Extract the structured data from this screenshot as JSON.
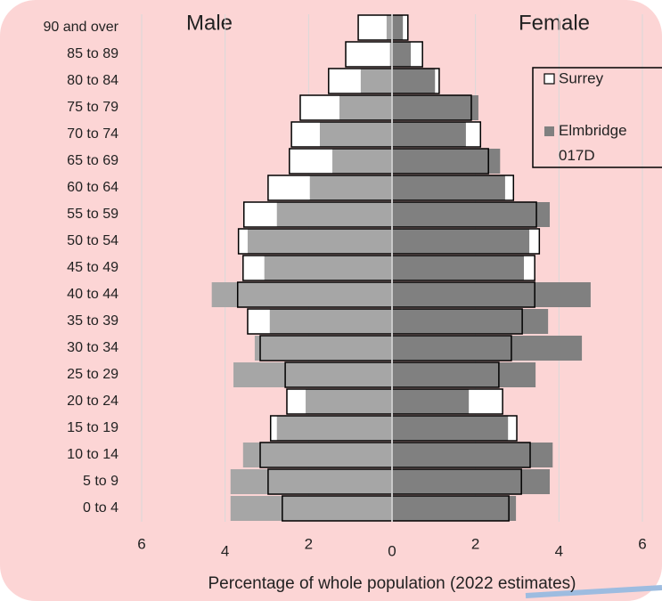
{
  "chart_data": {
    "type": "pyramid",
    "left_label": "Male",
    "right_label": "Female",
    "xlabel": "Percentage of whole population (2022 estimates)",
    "categories": [
      "0 to 4",
      "5 to 9",
      "10 to 14",
      "15 to 19",
      "20 to 24",
      "25 to 29",
      "30 to 34",
      "35 to 39",
      "40 to 44",
      "45 to 49",
      "50 to 54",
      "55 to 59",
      "60 to 64",
      "65 to 69",
      "70 to 74",
      "75 to 79",
      "80 to 84",
      "85 to 89",
      "90 and over"
    ],
    "xlim": [
      -6,
      6
    ],
    "xticks": [
      {
        "value": -6,
        "label": "6"
      },
      {
        "value": -4,
        "label": "4"
      },
      {
        "value": -2,
        "label": "2"
      },
      0,
      2,
      4,
      6
    ],
    "grid": true,
    "legend": "right",
    "series": [
      {
        "name": "Surrey",
        "color": "#ffffff",
        "edgecolor": "#000000",
        "male_values": [
          2.63,
          2.97,
          3.16,
          2.91,
          2.52,
          2.56,
          3.16,
          3.46,
          3.7,
          3.57,
          3.68,
          3.55,
          2.97,
          2.46,
          2.41,
          2.2,
          1.52,
          1.11,
          0.81
        ],
        "female_values": [
          2.8,
          3.1,
          3.31,
          2.99,
          2.65,
          2.56,
          2.86,
          3.12,
          3.42,
          3.42,
          3.53,
          3.46,
          2.91,
          2.31,
          2.12,
          1.9,
          1.13,
          0.73,
          0.38
        ]
      },
      {
        "name": "Elmbridge 017D",
        "color": "#a6a6a6",
        "female_color": "#808080",
        "male_values": [
          3.87,
          3.87,
          3.57,
          2.76,
          2.07,
          3.8,
          3.29,
          2.93,
          4.32,
          3.06,
          3.46,
          2.76,
          1.97,
          1.43,
          1.73,
          1.26,
          0.75,
          0.05,
          0.13
        ],
        "female_values": [
          2.97,
          3.78,
          3.85,
          2.78,
          1.84,
          3.44,
          4.55,
          3.74,
          4.76,
          3.16,
          3.29,
          3.78,
          2.71,
          2.59,
          1.77,
          2.07,
          1.03,
          0.45,
          0.26
        ]
      }
    ]
  }
}
